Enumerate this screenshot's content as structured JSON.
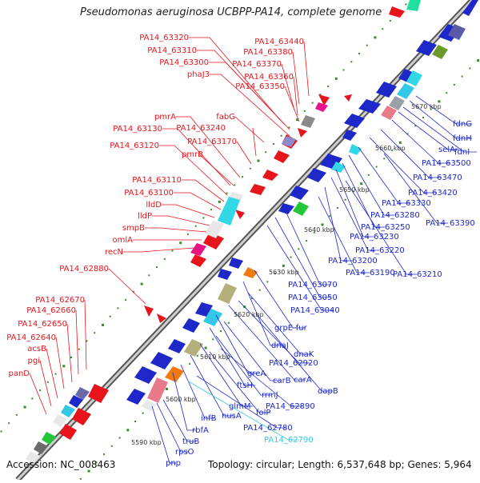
{
  "title": "Pseudomonas aeruginosa UCBPP-PA14, complete genome",
  "accession": "Accession: NC_008463",
  "topology": "Topology: circular; Length: 6,537,648 bp; Genes: 5,964",
  "colors": {
    "forward_genes": "#e8141c",
    "reverse_genes": "#1e28c8",
    "highlight": "#33c8e6",
    "backbone": "#7c7c7c",
    "tick_dots": "#3a8a2a"
  },
  "ticks": [
    "5590 kbp",
    "5600 kbp",
    "5610 kbp",
    "5620 kbp",
    "5630 kbp",
    "5640 kbp",
    "5650 kbp",
    "5660 kbp",
    "5670 kbp"
  ],
  "left_labels": [
    "PA14_63320",
    "PA14_63440",
    "PA14_63310",
    "PA14_63380",
    "PA14_63300",
    "PA14_63370",
    "phaJ3",
    "PA14_63360",
    "PA14_63350",
    "fabG",
    "pmrA",
    "PA14_63130",
    "PA14_63240",
    "PA14_63170",
    "PA14_63120",
    "pmrB",
    "PA14_63110",
    "PA14_63100",
    "lldD",
    "lldP",
    "smpB",
    "omlA",
    "recN",
    "PA14_62880",
    "PA14_62670",
    "PA14_62660",
    "PA14_62650",
    "PA14_62640",
    "acsB",
    "pgi",
    "panD"
  ],
  "right_labels": [
    "fdnG",
    "fdnH",
    "fdnI",
    "selA",
    "PA14_63500",
    "PA14_63470",
    "PA14_63420",
    "PA14_63330",
    "PA14_63390",
    "PA14_63280",
    "PA14_63250",
    "PA14_63230",
    "PA14_63220",
    "PA14_63200",
    "PA14_63210",
    "PA14_63190",
    "PA14_63070",
    "PA14_63050",
    "PA14_63040",
    "grpE-fur",
    "dnaJ",
    "dnaK",
    "PA14_62920",
    "carA",
    "greA",
    "carB",
    "dapB",
    "ftsH",
    "rrmJ",
    "glmM",
    "PA14_62890",
    "folP",
    "nusA",
    "infB",
    "PA14_62780",
    "rbfA",
    "PA14_62790",
    "truB",
    "rpsO",
    "pnp"
  ]
}
